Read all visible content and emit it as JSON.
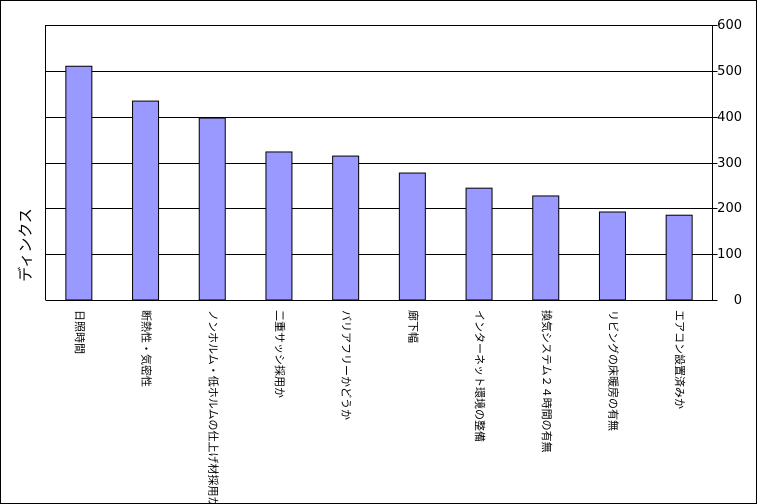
{
  "chart_data": {
    "type": "bar",
    "y_label": "ディンクス",
    "categories": [
      "日照時間",
      "断熱性・気密性",
      "ノンホルム・低ホルムの仕上げ材採用か",
      "二重サッシ採用か",
      "バリアフリーかどうか",
      "廊下幅",
      "インターネット環境の整備",
      "換気システム２４時間の有無",
      "リビングの床暖房の有無",
      "エアコン設置済みか"
    ],
    "values": [
      510,
      434,
      397,
      323,
      314,
      277,
      244,
      227,
      192,
      185
    ],
    "color": "#9999ff",
    "ylim": [
      0,
      600
    ],
    "yticks": [
      0,
      100,
      200,
      300,
      400,
      500,
      600
    ],
    "grid": true,
    "y_axis_side": "right"
  }
}
